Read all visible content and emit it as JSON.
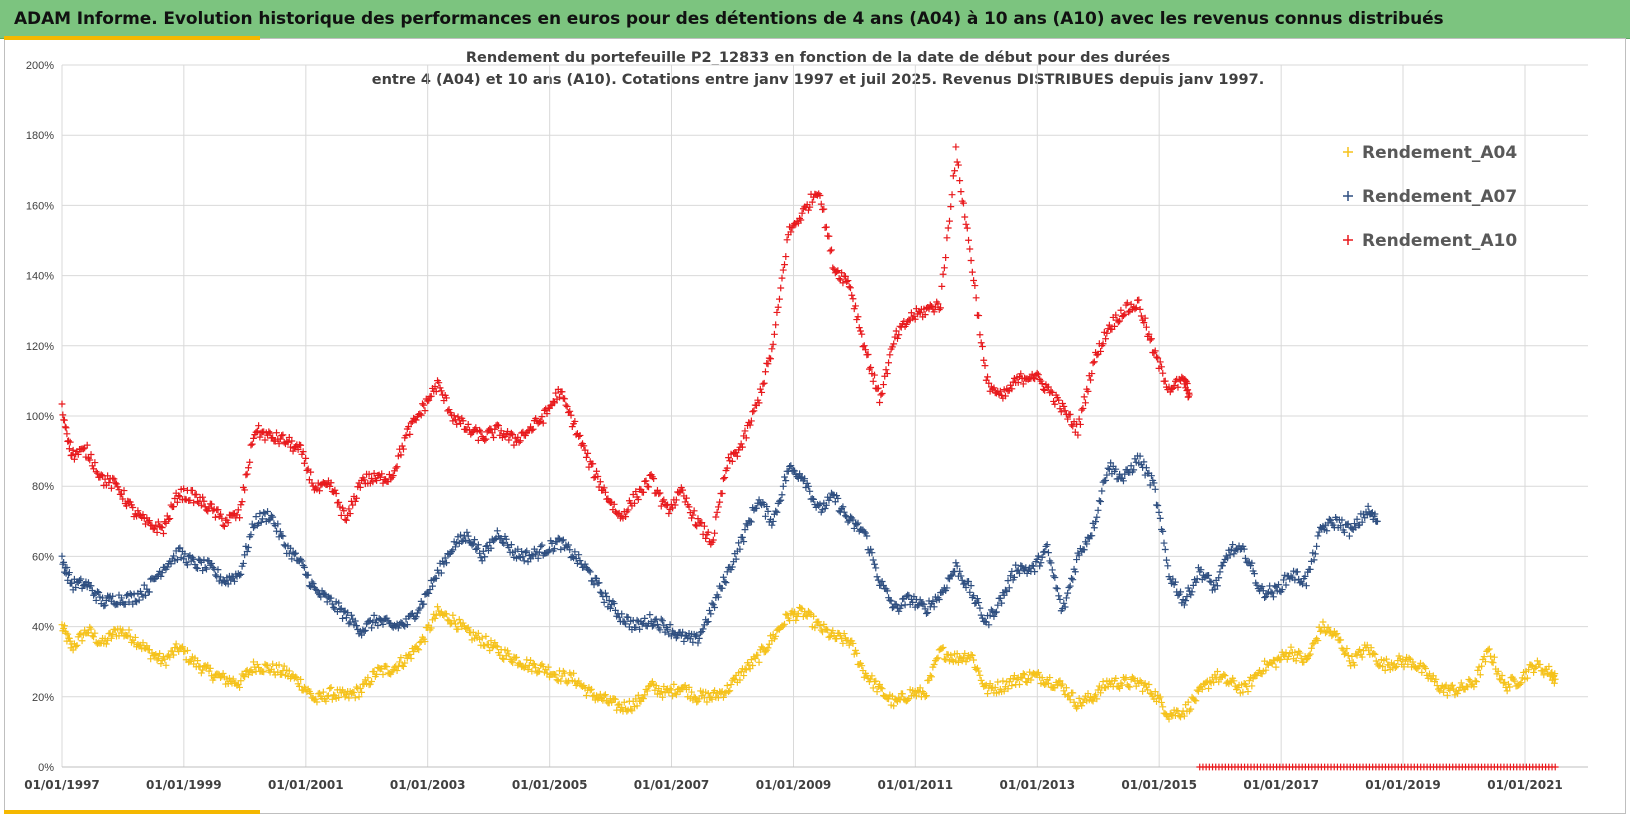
{
  "banner": {
    "title": "ADAM Informe. Evolution historique des performances en euros pour des détentions de 4 ans (A04) à 10 ans (A10) avec les revenus connus distribués"
  },
  "colors": {
    "banner_bg": "#7cc47f",
    "accent": "#f5b800",
    "Rendement_A04": "#f5c21b",
    "Rendement_A07": "#2f4f80",
    "Rendement_A10": "#e8191c"
  },
  "chart_data": {
    "type": "scatter",
    "title": "Rendement du portefeuille P2_12833 en fonction de la date de début pour des durées",
    "subtitle": "entre 4 (A04) et 10 ans (A10). Cotations  entre janv 1997 et juil 2025. Revenus DISTRIBUES depuis janv 1997.",
    "xlabel": "",
    "ylabel": "",
    "x_axis": "date",
    "xlim": [
      "01/01/1997",
      "01/07/2021"
    ],
    "ylim": [
      0,
      2.0
    ],
    "grid": true,
    "legend_position": "top-right",
    "marker": "plus",
    "y_ticks": [
      "0%",
      "20%",
      "40%",
      "60%",
      "80%",
      "100%",
      "120%",
      "140%",
      "160%",
      "180%",
      "200%"
    ],
    "x_ticks": [
      "01/01/1997",
      "01/01/1999",
      "01/01/2001",
      "01/01/2003",
      "01/01/2005",
      "01/01/2007",
      "01/01/2009",
      "01/01/2011",
      "01/01/2013",
      "01/01/2015",
      "01/01/2017",
      "01/01/2019",
      "01/01/2021"
    ],
    "series": [
      {
        "name": "Rendement_A04",
        "points": [
          [
            "1997-01",
            0.4
          ],
          [
            "1997-03",
            0.34
          ],
          [
            "1997-06",
            0.39
          ],
          [
            "1997-09",
            0.35
          ],
          [
            "1997-12",
            0.39
          ],
          [
            "1998-03",
            0.37
          ],
          [
            "1998-06",
            0.33
          ],
          [
            "1998-09",
            0.3
          ],
          [
            "1998-12",
            0.34
          ],
          [
            "1999-03",
            0.3
          ],
          [
            "1999-06",
            0.27
          ],
          [
            "1999-09",
            0.25
          ],
          [
            "1999-12",
            0.24
          ],
          [
            "2000-03",
            0.29
          ],
          [
            "2000-06",
            0.28
          ],
          [
            "2000-09",
            0.27
          ],
          [
            "2000-12",
            0.24
          ],
          [
            "2001-03",
            0.19
          ],
          [
            "2001-06",
            0.21
          ],
          [
            "2001-09",
            0.2
          ],
          [
            "2001-12",
            0.22
          ],
          [
            "2002-03",
            0.27
          ],
          [
            "2002-06",
            0.28
          ],
          [
            "2002-09",
            0.31
          ],
          [
            "2002-12",
            0.36
          ],
          [
            "2003-03",
            0.44
          ],
          [
            "2003-06",
            0.42
          ],
          [
            "2003-09",
            0.38
          ],
          [
            "2003-12",
            0.36
          ],
          [
            "2004-03",
            0.33
          ],
          [
            "2004-06",
            0.31
          ],
          [
            "2004-09",
            0.29
          ],
          [
            "2004-12",
            0.28
          ],
          [
            "2005-03",
            0.26
          ],
          [
            "2005-06",
            0.25
          ],
          [
            "2005-09",
            0.21
          ],
          [
            "2005-12",
            0.19
          ],
          [
            "2006-03",
            0.17
          ],
          [
            "2006-06",
            0.18
          ],
          [
            "2006-09",
            0.23
          ],
          [
            "2006-12",
            0.21
          ],
          [
            "2007-03",
            0.23
          ],
          [
            "2007-06",
            0.2
          ],
          [
            "2007-09",
            0.2
          ],
          [
            "2007-12",
            0.22
          ],
          [
            "2008-03",
            0.27
          ],
          [
            "2008-06",
            0.31
          ],
          [
            "2008-09",
            0.37
          ],
          [
            "2008-12",
            0.43
          ],
          [
            "2009-03",
            0.44
          ],
          [
            "2009-06",
            0.4
          ],
          [
            "2009-09",
            0.37
          ],
          [
            "2009-12",
            0.36
          ],
          [
            "2010-03",
            0.27
          ],
          [
            "2010-06",
            0.22
          ],
          [
            "2010-09",
            0.18
          ],
          [
            "2010-12",
            0.21
          ],
          [
            "2011-03",
            0.21
          ],
          [
            "2011-06",
            0.33
          ],
          [
            "2011-09",
            0.31
          ],
          [
            "2011-12",
            0.32
          ],
          [
            "2012-03",
            0.22
          ],
          [
            "2012-06",
            0.23
          ],
          [
            "2012-09",
            0.25
          ],
          [
            "2012-12",
            0.26
          ],
          [
            "2013-03",
            0.25
          ],
          [
            "2013-06",
            0.23
          ],
          [
            "2013-09",
            0.18
          ],
          [
            "2013-12",
            0.2
          ],
          [
            "2014-03",
            0.24
          ],
          [
            "2014-06",
            0.24
          ],
          [
            "2014-09",
            0.24
          ],
          [
            "2014-12",
            0.21
          ],
          [
            "2015-03",
            0.15
          ],
          [
            "2015-06",
            0.16
          ],
          [
            "2015-09",
            0.21
          ],
          [
            "2015-12",
            0.26
          ],
          [
            "2016-03",
            0.24
          ],
          [
            "2016-06",
            0.22
          ],
          [
            "2016-09",
            0.28
          ],
          [
            "2016-12",
            0.3
          ],
          [
            "2017-03",
            0.33
          ],
          [
            "2017-06",
            0.3
          ],
          [
            "2017-09",
            0.4
          ],
          [
            "2017-12",
            0.37
          ],
          [
            "2018-03",
            0.3
          ],
          [
            "2018-06",
            0.34
          ],
          [
            "2018-09",
            0.29
          ],
          [
            "2018-12",
            0.3
          ],
          [
            "2019-03",
            0.3
          ],
          [
            "2019-06",
            0.26
          ],
          [
            "2019-09",
            0.22
          ],
          [
            "2019-12",
            0.22
          ],
          [
            "2020-03",
            0.24
          ],
          [
            "2020-06",
            0.33
          ],
          [
            "2020-09",
            0.23
          ],
          [
            "2020-12",
            0.25
          ],
          [
            "2021-03",
            0.29
          ],
          [
            "2021-06",
            0.27
          ],
          [
            "2021-07",
            0.25
          ]
        ]
      },
      {
        "name": "Rendement_A07",
        "points": [
          [
            "1997-01",
            0.59
          ],
          [
            "1997-03",
            0.52
          ],
          [
            "1997-06",
            0.52
          ],
          [
            "1997-09",
            0.47
          ],
          [
            "1997-12",
            0.48
          ],
          [
            "1998-03",
            0.48
          ],
          [
            "1998-06",
            0.51
          ],
          [
            "1998-09",
            0.57
          ],
          [
            "1998-12",
            0.61
          ],
          [
            "1999-03",
            0.58
          ],
          [
            "1999-06",
            0.57
          ],
          [
            "1999-09",
            0.53
          ],
          [
            "1999-12",
            0.55
          ],
          [
            "2000-03",
            0.7
          ],
          [
            "2000-06",
            0.72
          ],
          [
            "2000-09",
            0.63
          ],
          [
            "2000-12",
            0.58
          ],
          [
            "2001-03",
            0.5
          ],
          [
            "2001-06",
            0.47
          ],
          [
            "2001-09",
            0.43
          ],
          [
            "2001-12",
            0.39
          ],
          [
            "2002-03",
            0.42
          ],
          [
            "2002-06",
            0.4
          ],
          [
            "2002-09",
            0.41
          ],
          [
            "2002-12",
            0.47
          ],
          [
            "2003-03",
            0.55
          ],
          [
            "2003-06",
            0.63
          ],
          [
            "2003-09",
            0.66
          ],
          [
            "2003-12",
            0.6
          ],
          [
            "2004-03",
            0.67
          ],
          [
            "2004-06",
            0.61
          ],
          [
            "2004-09",
            0.6
          ],
          [
            "2004-12",
            0.62
          ],
          [
            "2005-03",
            0.64
          ],
          [
            "2005-06",
            0.6
          ],
          [
            "2005-09",
            0.55
          ],
          [
            "2005-12",
            0.48
          ],
          [
            "2006-03",
            0.43
          ],
          [
            "2006-06",
            0.4
          ],
          [
            "2006-09",
            0.42
          ],
          [
            "2006-12",
            0.4
          ],
          [
            "2007-03",
            0.37
          ],
          [
            "2007-06",
            0.36
          ],
          [
            "2007-09",
            0.45
          ],
          [
            "2007-12",
            0.55
          ],
          [
            "2008-03",
            0.65
          ],
          [
            "2008-06",
            0.76
          ],
          [
            "2008-09",
            0.7
          ],
          [
            "2008-12",
            0.85
          ],
          [
            "2009-03",
            0.83
          ],
          [
            "2009-06",
            0.73
          ],
          [
            "2009-09",
            0.77
          ],
          [
            "2009-12",
            0.7
          ],
          [
            "2010-03",
            0.67
          ],
          [
            "2010-06",
            0.53
          ],
          [
            "2010-09",
            0.45
          ],
          [
            "2010-12",
            0.48
          ],
          [
            "2011-03",
            0.45
          ],
          [
            "2011-06",
            0.49
          ],
          [
            "2011-09",
            0.57
          ],
          [
            "2011-12",
            0.5
          ],
          [
            "2012-03",
            0.41
          ],
          [
            "2012-06",
            0.48
          ],
          [
            "2012-09",
            0.57
          ],
          [
            "2012-12",
            0.56
          ],
          [
            "2013-03",
            0.62
          ],
          [
            "2013-06",
            0.44
          ],
          [
            "2013-09",
            0.6
          ],
          [
            "2013-12",
            0.68
          ],
          [
            "2014-03",
            0.86
          ],
          [
            "2014-06",
            0.82
          ],
          [
            "2014-09",
            0.88
          ],
          [
            "2014-12",
            0.8
          ],
          [
            "2015-03",
            0.55
          ],
          [
            "2015-06",
            0.47
          ],
          [
            "2015-09",
            0.56
          ],
          [
            "2015-12",
            0.51
          ],
          [
            "2016-03",
            0.62
          ],
          [
            "2016-06",
            0.61
          ],
          [
            "2016-09",
            0.5
          ],
          [
            "2016-12",
            0.5
          ],
          [
            "2017-03",
            0.55
          ],
          [
            "2017-06",
            0.53
          ],
          [
            "2017-09",
            0.68
          ],
          [
            "2017-12",
            0.7
          ],
          [
            "2018-03",
            0.67
          ],
          [
            "2018-06",
            0.73
          ],
          [
            "2018-08",
            0.7
          ]
        ]
      },
      {
        "name": "Rendement_A10",
        "points": [
          [
            "1997-01",
            1.02
          ],
          [
            "1997-03",
            0.89
          ],
          [
            "1997-06",
            0.9
          ],
          [
            "1997-09",
            0.82
          ],
          [
            "1997-12",
            0.8
          ],
          [
            "1998-03",
            0.73
          ],
          [
            "1998-06",
            0.69
          ],
          [
            "1998-09",
            0.68
          ],
          [
            "1998-12",
            0.78
          ],
          [
            "1999-03",
            0.77
          ],
          [
            "1999-06",
            0.74
          ],
          [
            "1999-09",
            0.7
          ],
          [
            "1999-12",
            0.72
          ],
          [
            "2000-03",
            0.96
          ],
          [
            "2000-06",
            0.94
          ],
          [
            "2000-09",
            0.93
          ],
          [
            "2000-12",
            0.9
          ],
          [
            "2001-03",
            0.79
          ],
          [
            "2001-06",
            0.8
          ],
          [
            "2001-09",
            0.7
          ],
          [
            "2001-12",
            0.82
          ],
          [
            "2002-03",
            0.82
          ],
          [
            "2002-06",
            0.83
          ],
          [
            "2002-09",
            0.95
          ],
          [
            "2002-12",
            1.02
          ],
          [
            "2003-03",
            1.09
          ],
          [
            "2003-06",
            1.0
          ],
          [
            "2003-09",
            0.96
          ],
          [
            "2003-12",
            0.94
          ],
          [
            "2004-03",
            0.96
          ],
          [
            "2004-06",
            0.93
          ],
          [
            "2004-09",
            0.96
          ],
          [
            "2004-12",
            1.0
          ],
          [
            "2005-03",
            1.07
          ],
          [
            "2005-06",
            0.97
          ],
          [
            "2005-09",
            0.86
          ],
          [
            "2005-12",
            0.78
          ],
          [
            "2006-03",
            0.71
          ],
          [
            "2006-06",
            0.77
          ],
          [
            "2006-09",
            0.82
          ],
          [
            "2006-12",
            0.73
          ],
          [
            "2007-03",
            0.78
          ],
          [
            "2007-06",
            0.7
          ],
          [
            "2007-09",
            0.64
          ],
          [
            "2007-12",
            0.86
          ],
          [
            "2008-03",
            0.92
          ],
          [
            "2008-06",
            1.04
          ],
          [
            "2008-09",
            1.2
          ],
          [
            "2008-12",
            1.52
          ],
          [
            "2009-03",
            1.58
          ],
          [
            "2009-06",
            1.65
          ],
          [
            "2009-09",
            1.42
          ],
          [
            "2009-12",
            1.38
          ],
          [
            "2010-03",
            1.2
          ],
          [
            "2010-06",
            1.05
          ],
          [
            "2010-09",
            1.22
          ],
          [
            "2010-12",
            1.28
          ],
          [
            "2011-03",
            1.3
          ],
          [
            "2011-06",
            1.32
          ],
          [
            "2011-09",
            1.75
          ],
          [
            "2011-12",
            1.45
          ],
          [
            "2012-03",
            1.1
          ],
          [
            "2012-06",
            1.05
          ],
          [
            "2012-09",
            1.1
          ],
          [
            "2012-12",
            1.12
          ],
          [
            "2013-03",
            1.08
          ],
          [
            "2013-06",
            1.02
          ],
          [
            "2013-09",
            0.96
          ],
          [
            "2013-12",
            1.15
          ],
          [
            "2014-03",
            1.25
          ],
          [
            "2014-06",
            1.3
          ],
          [
            "2014-09",
            1.32
          ],
          [
            "2014-12",
            1.18
          ],
          [
            "2015-03",
            1.08
          ],
          [
            "2015-06",
            1.1
          ],
          [
            "2015-07",
            1.06
          ]
        ],
        "zero_points": {
          "from": "2015-09",
          "to": "2021-07",
          "value": 0.0
        }
      }
    ]
  }
}
